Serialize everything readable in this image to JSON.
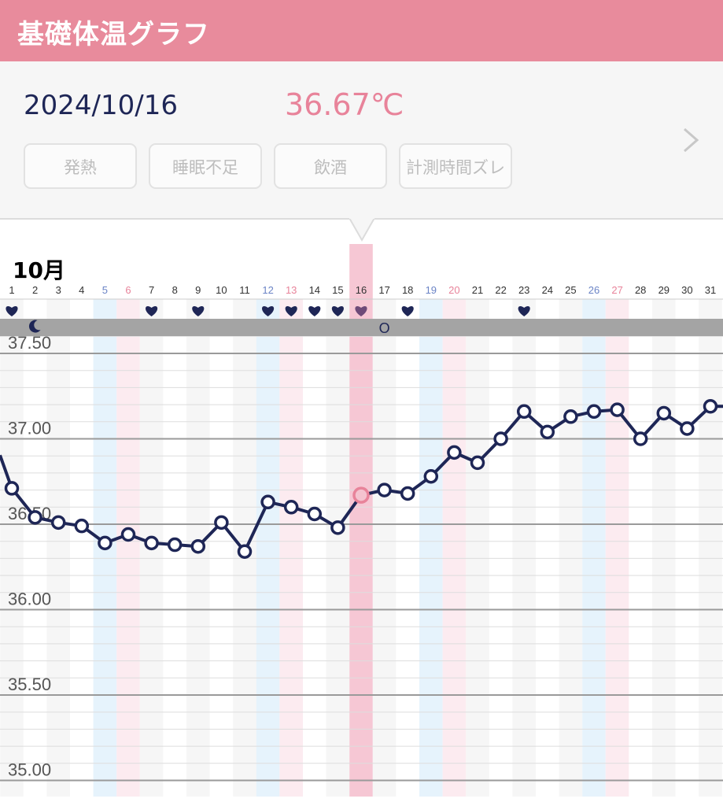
{
  "header": {
    "title": "基礎体温グラフ"
  },
  "info": {
    "date": "2024/10/16",
    "temperature": "36.67℃",
    "next_icon": "chevron-right-icon",
    "tags": [
      {
        "label": "発熱"
      },
      {
        "label": "睡眠不足"
      },
      {
        "label": "飲酒"
      },
      {
        "label": "計測時間ズレ"
      }
    ]
  },
  "month_label": "10月",
  "colors": {
    "accent": "#e88b9c",
    "line": "#1e2656",
    "saturday": "#6b84c6",
    "sunday": "#e8839a",
    "selected_band": "#f6c7d4"
  },
  "chart_data": {
    "type": "line",
    "x": [
      1,
      2,
      3,
      4,
      5,
      6,
      7,
      8,
      9,
      10,
      11,
      12,
      13,
      14,
      15,
      16,
      17,
      18,
      19,
      20,
      21,
      22,
      23,
      24,
      25,
      26,
      27,
      28,
      29,
      30,
      31
    ],
    "values": [
      36.71,
      36.54,
      36.51,
      36.49,
      36.39,
      36.44,
      36.39,
      36.38,
      36.37,
      36.51,
      36.34,
      36.63,
      36.6,
      36.56,
      36.48,
      36.67,
      36.7,
      36.68,
      36.78,
      36.92,
      36.86,
      37.0,
      37.16,
      37.04,
      37.13,
      37.16,
      37.17,
      37.0,
      37.15,
      37.06,
      37.19
    ],
    "first_value_offscreen": 36.95,
    "selected_day": 16,
    "ylim": [
      35.0,
      37.6
    ],
    "yticks": [
      "37.50",
      "37.00",
      "36.50",
      "36.00",
      "35.50",
      "35.00"
    ],
    "ytick_values": [
      37.5,
      37.0,
      36.5,
      36.0,
      35.5,
      35.0
    ],
    "saturdays": [
      5,
      12,
      19,
      26
    ],
    "sundays": [
      6,
      13,
      20,
      27
    ],
    "heart_days": [
      1,
      7,
      9,
      12,
      13,
      14,
      15,
      16,
      18,
      23
    ],
    "heart_icon": "heart-icon",
    "moon_day": 2,
    "moon_icon": "moon-icon",
    "ovulation_day": 17,
    "ovulation_label": "O",
    "grid": true
  }
}
